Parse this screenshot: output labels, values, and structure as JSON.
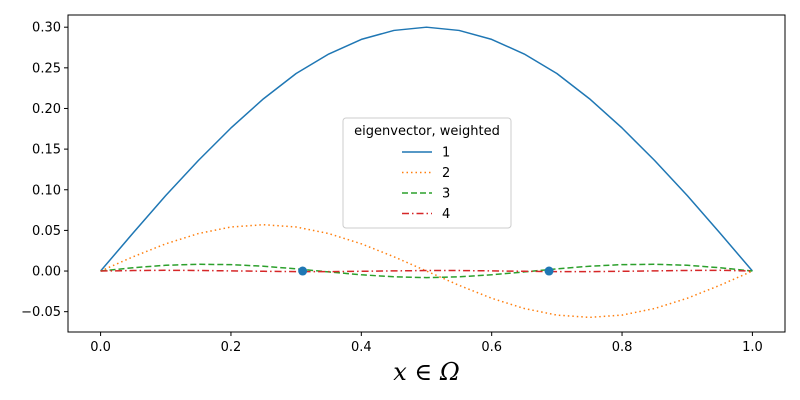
{
  "chart_data": {
    "type": "line",
    "title": "",
    "xlabel": "x ∈ Ω",
    "ylabel": "",
    "xlim": [
      -0.05,
      1.05
    ],
    "ylim": [
      -0.075,
      0.315
    ],
    "xticks": [
      0.0,
      0.2,
      0.4,
      0.6,
      0.8,
      1.0
    ],
    "xtick_labels": [
      "0.0",
      "0.2",
      "0.4",
      "0.6",
      "0.8",
      "1.0"
    ],
    "yticks": [
      -0.05,
      0.0,
      0.05,
      0.1,
      0.15,
      0.2,
      0.25,
      0.3
    ],
    "ytick_labels": [
      "−0.05",
      "0.00",
      "0.05",
      "0.10",
      "0.15",
      "0.20",
      "0.25",
      "0.30"
    ],
    "grid": false,
    "legend": {
      "title": "eigenvector, weighted",
      "placement": "center"
    },
    "series": [
      {
        "name": "1",
        "color": "#1f77b4",
        "linestyle": "solid",
        "x": [
          0.0,
          0.05,
          0.1,
          0.15,
          0.2,
          0.25,
          0.3,
          0.35,
          0.4,
          0.45,
          0.5,
          0.55,
          0.6,
          0.65,
          0.7,
          0.75,
          0.8,
          0.85,
          0.9,
          0.95,
          1.0
        ],
        "y": [
          0.0,
          0.047,
          0.093,
          0.136,
          0.176,
          0.212,
          0.243,
          0.267,
          0.285,
          0.296,
          0.3,
          0.296,
          0.285,
          0.267,
          0.243,
          0.212,
          0.176,
          0.136,
          0.093,
          0.047,
          0.0
        ]
      },
      {
        "name": "2",
        "color": "#ff7f0e",
        "linestyle": "dotted",
        "x": [
          0.0,
          0.05,
          0.1,
          0.15,
          0.2,
          0.25,
          0.3,
          0.35,
          0.4,
          0.45,
          0.5,
          0.55,
          0.6,
          0.65,
          0.7,
          0.75,
          0.8,
          0.85,
          0.9,
          0.95,
          1.0
        ],
        "y": [
          0.0,
          0.0176,
          0.0335,
          0.0461,
          0.0542,
          0.057,
          0.0542,
          0.0461,
          0.0335,
          0.0176,
          0.0,
          -0.0176,
          -0.0335,
          -0.0461,
          -0.0542,
          -0.057,
          -0.0542,
          -0.0461,
          -0.0335,
          -0.0176,
          0.0
        ]
      },
      {
        "name": "3",
        "color": "#2ca02c",
        "linestyle": "dashed",
        "x": [
          0.0,
          0.05,
          0.1,
          0.15,
          0.2,
          0.25,
          0.3,
          0.35,
          0.4,
          0.45,
          0.5,
          0.55,
          0.6,
          0.65,
          0.7,
          0.75,
          0.8,
          0.85,
          0.9,
          0.95,
          1.0
        ],
        "y": [
          0.0,
          0.0041,
          0.0071,
          0.0083,
          0.0079,
          0.0059,
          0.0027,
          -0.0011,
          -0.0046,
          -0.0071,
          -0.0081,
          -0.0071,
          -0.0046,
          -0.0011,
          0.0027,
          0.0059,
          0.0079,
          0.0083,
          0.0071,
          0.0041,
          0.0
        ]
      },
      {
        "name": "4",
        "color": "#d62728",
        "linestyle": "dashdot",
        "x": [
          0.0,
          0.05,
          0.1,
          0.15,
          0.2,
          0.25,
          0.3,
          0.35,
          0.4,
          0.45,
          0.5,
          0.55,
          0.6,
          0.65,
          0.7,
          0.75,
          0.8,
          0.85,
          0.9,
          0.95,
          1.0
        ],
        "y": [
          0.0,
          0.0006,
          0.0009,
          0.0007,
          0.0002,
          -0.0003,
          -0.0007,
          -0.0007,
          -0.0003,
          0.0002,
          0.0006,
          0.0006,
          0.0002,
          -0.0003,
          -0.0007,
          -0.0007,
          -0.0003,
          0.0002,
          0.0007,
          0.0009,
          0.0
        ]
      }
    ],
    "markers": {
      "color": "#1f77b4",
      "points": [
        {
          "x": 0.31,
          "y": 0.0
        },
        {
          "x": 0.688,
          "y": 0.0
        }
      ]
    }
  }
}
